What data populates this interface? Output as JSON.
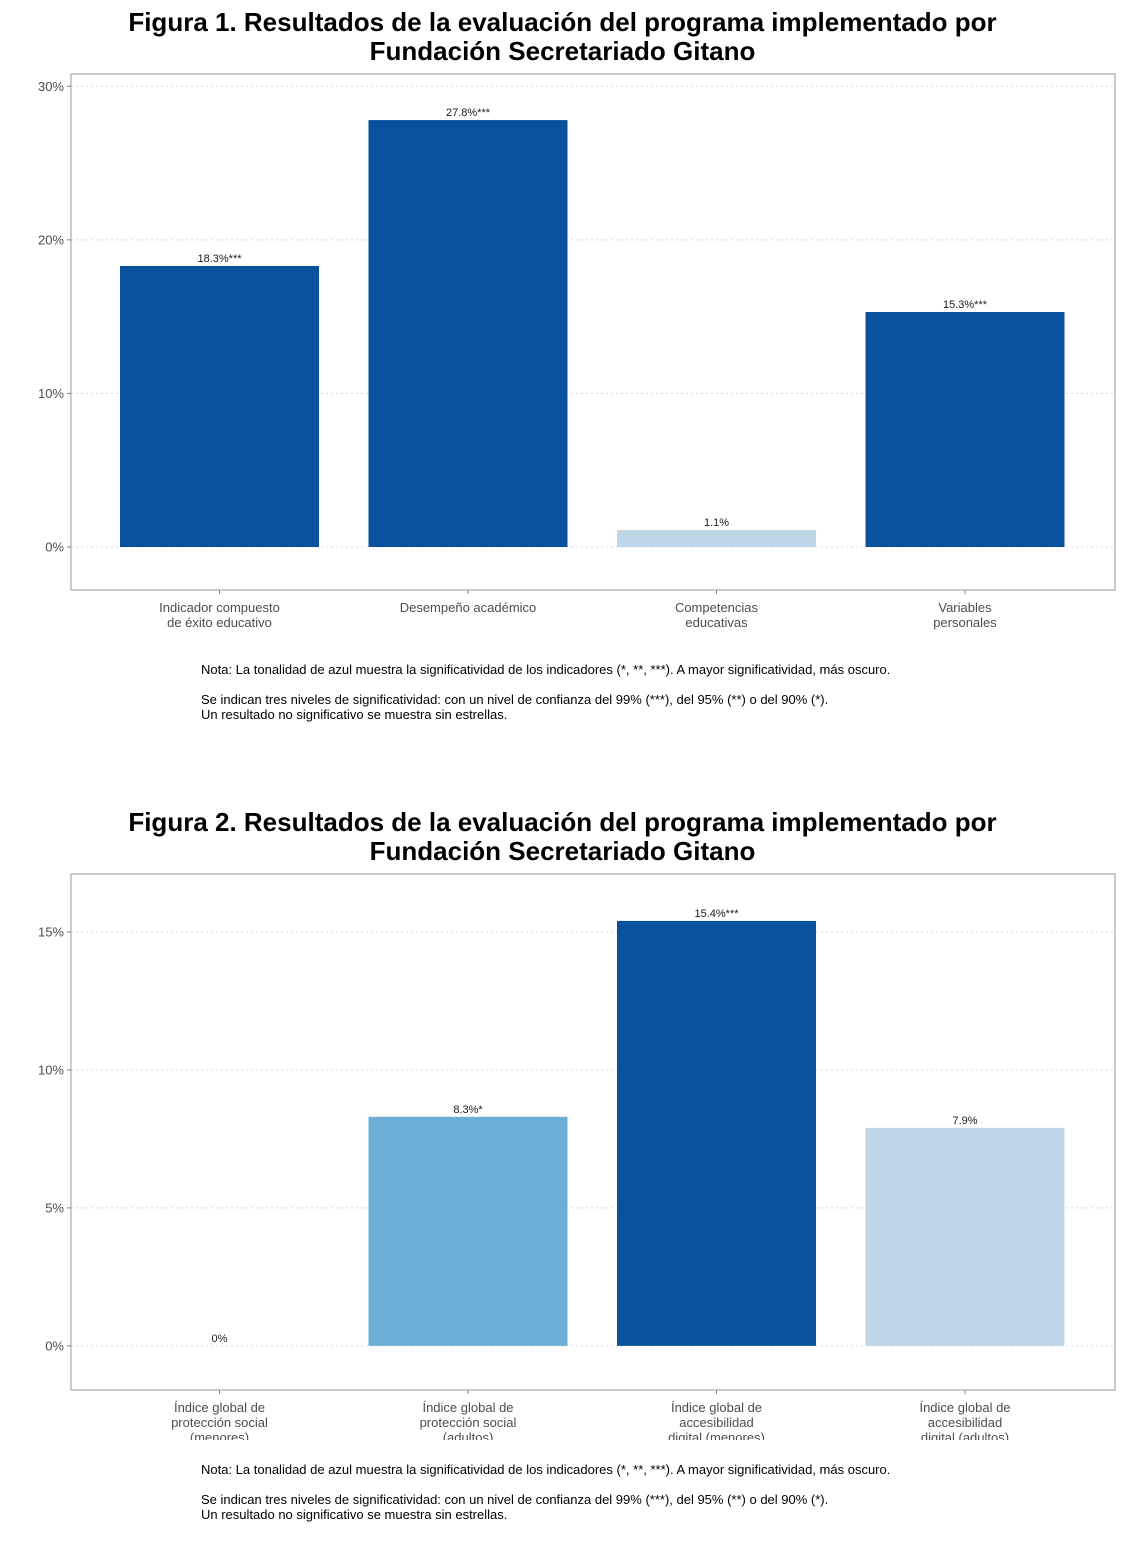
{
  "chart_data": [
    {
      "type": "bar",
      "title_lines": [
        "Figura 1. Resultados de la evaluación del programa implementado por",
        "Fundación Secretariado Gitano"
      ],
      "categories": [
        [
          "Indicador compuesto",
          "de éxito educativo"
        ],
        [
          "Desempeño académico"
        ],
        [
          "Competencias",
          "educativas"
        ],
        [
          "Variables",
          "personales"
        ]
      ],
      "values": [
        18.3,
        27.8,
        1.1,
        15.3
      ],
      "data_labels": [
        "18.3%***",
        "27.8%***",
        "1.1%",
        "15.3%***"
      ],
      "colors": [
        "#08519c",
        "#08519c",
        "#bfd6e6",
        "#08519c"
      ],
      "yticks": [
        0,
        10,
        20,
        30
      ],
      "ytick_labels": [
        "0%",
        "10%",
        "20%",
        "30%"
      ],
      "ylim": [
        -2.8,
        30.8
      ],
      "grid": "horizontal dotted",
      "notes": [
        "Nota: La tonalidad de azul muestra la significatividad de los indicadores (*, **, ***). A mayor significatividad, más oscuro.",
        "Se indican tres niveles de significatividad: con un nivel de confianza del 99% (***), del 95% (**) o del 90% (*).",
        "Un resultado no significativo se muestra sin estrellas."
      ]
    },
    {
      "type": "bar",
      "title_lines": [
        "Figura 2. Resultados de la evaluación del programa implementado por",
        "Fundación Secretariado Gitano"
      ],
      "categories": [
        [
          "Índice global de",
          "protección social",
          "(menores)"
        ],
        [
          "Índice global de",
          "protección social",
          "(adultos)"
        ],
        [
          "Índice global de",
          "accesibilidad",
          "digital (menores)"
        ],
        [
          "Índice global de",
          "accesibilidad",
          "digital (adultos)"
        ]
      ],
      "values": [
        0,
        8.3,
        15.4,
        7.9
      ],
      "data_labels": [
        "0%",
        "8.3%*",
        "15.4%***",
        "7.9%"
      ],
      "colors": [
        "#bfd6e6",
        "#6baed6",
        "#08519c",
        "#bfd6e6"
      ],
      "yticks": [
        0,
        5,
        10,
        15
      ],
      "ytick_labels": [
        "0%",
        "5%",
        "10%",
        "15%"
      ],
      "ylim": [
        -1.6,
        17.1
      ],
      "grid": "horizontal dotted",
      "notes": [
        "Nota: La tonalidad de azul muestra la significatividad de los indicadores (*, **, ***). A mayor significatividad, más oscuro.",
        "Se indican tres niveles de significatividad: con un nivel de confianza del 99% (***), del 95% (**) o del 90% (*).",
        "Un resultado no significativo se muestra sin estrellas."
      ]
    }
  ]
}
